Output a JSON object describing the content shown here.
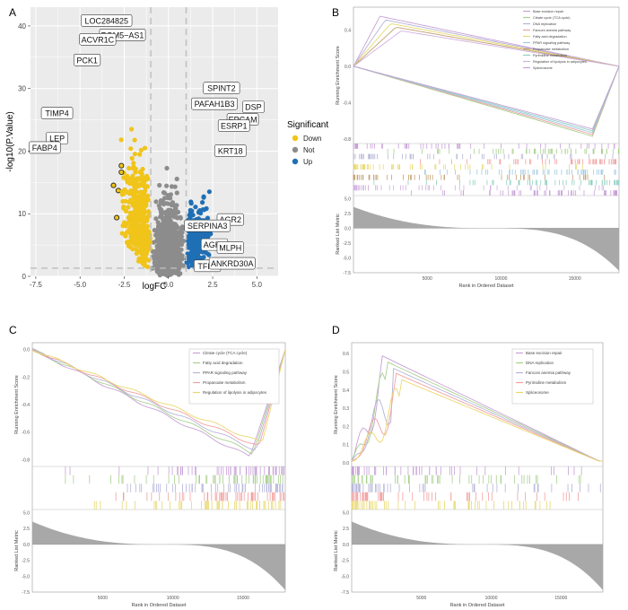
{
  "panels": {
    "A": {
      "label": "A"
    },
    "B": {
      "label": "B"
    },
    "C": {
      "label": "C"
    },
    "D": {
      "label": "D"
    }
  },
  "colors": {
    "down": "#f0c419",
    "not": "#8c8c8c",
    "up": "#1f6fb5",
    "panel_bg": "#ebebeb",
    "gsea": [
      "#c8a0d8",
      "#a8d08d",
      "#b4b4d8",
      "#f2a0a0",
      "#e8d870",
      "#9ec9e2",
      "#c2a070",
      "#8fd0c0",
      "#d0b0e0"
    ]
  },
  "chart_data": [
    {
      "panel": "A",
      "type": "scatter",
      "title": "",
      "xlabel": "logFC",
      "ylabel": "-log10(P.Value)",
      "xlim": [
        -7.8,
        6.2
      ],
      "ylim": [
        0,
        43
      ],
      "xticks": [
        -7.5,
        -5.0,
        -2.5,
        0.0,
        2.5,
        5.0
      ],
      "xtick_labels": [
        "-7.5",
        "-5.0",
        "-2.5",
        "0.0",
        "2.5",
        "5.0"
      ],
      "yticks": [
        0,
        10,
        20,
        30,
        40
      ],
      "ytick_labels": [
        "0",
        "10",
        "20",
        "30",
        "40"
      ],
      "logfc_threshold": 1,
      "p_threshold": 1.3,
      "legend": {
        "title": "Significant",
        "entries": [
          "Down",
          "Not",
          "Up"
        ],
        "position": "right"
      },
      "labels": [
        {
          "text": "LOC284825",
          "x": -3.5,
          "y": 40.8
        },
        {
          "text": "PGM5−AS1",
          "x": -2.6,
          "y": 38.5
        },
        {
          "text": "ACVR1C",
          "x": -4.0,
          "y": 37.8
        },
        {
          "text": "PCK1",
          "x": -4.6,
          "y": 34.5
        },
        {
          "text": "TIMP4",
          "x": -6.3,
          "y": 26.0
        },
        {
          "text": "LEP",
          "x": -6.3,
          "y": 22.0
        },
        {
          "text": "FABP4",
          "x": -7.0,
          "y": 20.5
        },
        {
          "text": "SPINT2",
          "x": 3.0,
          "y": 30.0
        },
        {
          "text": "PAFAH1B3",
          "x": 2.6,
          "y": 27.5
        },
        {
          "text": "DSP",
          "x": 4.8,
          "y": 27.0
        },
        {
          "text": "EPCAM",
          "x": 4.2,
          "y": 25.0
        },
        {
          "text": "ESRP1",
          "x": 3.7,
          "y": 24.0
        },
        {
          "text": "KRT18",
          "x": 3.5,
          "y": 20.0
        },
        {
          "text": "AGR2",
          "x": 3.5,
          "y": 9.0
        },
        {
          "text": "SERPINA3",
          "x": 2.2,
          "y": 8.0
        },
        {
          "text": "AGR3",
          "x": 2.6,
          "y": 5.0
        },
        {
          "text": "MLPH",
          "x": 3.5,
          "y": 4.5
        },
        {
          "text": "TFF1",
          "x": 2.2,
          "y": 1.6
        },
        {
          "text": "ANKRD30A",
          "x": 3.6,
          "y": 2.0
        }
      ]
    },
    {
      "panel": "B",
      "type": "line",
      "ylabel_top": "Running Enrichment Score",
      "ylabel_bottom": "Ranked List Metric",
      "xlabel": "Rank in Ordered Dataset",
      "xlim": [
        0,
        18000
      ],
      "xticks": [
        5000,
        10000,
        15000
      ],
      "xtick_labels": [
        "5000",
        "10000",
        "15000"
      ],
      "ylim_top": [
        -0.85,
        0.65
      ],
      "yticks_top": [
        -0.8,
        -0.4,
        0.0,
        0.4
      ],
      "ytick_labels_top": [
        "-0.8",
        "-0.4",
        "0.0",
        "0.4"
      ],
      "ylim_bottom": [
        -7.5,
        5.5
      ],
      "yticks_bottom": [
        5.0,
        2.5,
        0.0,
        -2.5,
        -5.0,
        -7.5
      ],
      "ytick_labels_bottom": [
        "5.0",
        "2.5",
        "0.0",
        "-2.5",
        "-5.0",
        "-7.5"
      ],
      "series": [
        {
          "name": "Base excision repair"
        },
        {
          "name": "Citrate cycle (TCA cycle)"
        },
        {
          "name": "DNA replication"
        },
        {
          "name": "Fanconi anemia pathway"
        },
        {
          "name": "Fatty acid degradation"
        },
        {
          "name": "PPAR signaling pathway"
        },
        {
          "name": "Propanoate metabolism"
        },
        {
          "name": "Pyrimidine metabolism"
        },
        {
          "name": "Regulation of lipolysis in adipocytes"
        },
        {
          "name": "Spliceosome"
        }
      ]
    },
    {
      "panel": "C",
      "type": "line",
      "ylabel_top": "Running Enrichment Score",
      "ylabel_bottom": "Ranked List Metric",
      "xlabel": "Rank in Ordered Dataset",
      "xlim": [
        0,
        18000
      ],
      "xticks": [
        5000,
        10000,
        15000
      ],
      "xtick_labels": [
        "5000",
        "10000",
        "15000"
      ],
      "ylim_top": [
        -0.85,
        0.05
      ],
      "yticks_top": [
        0.0,
        -0.2,
        -0.4,
        -0.6,
        -0.8
      ],
      "ytick_labels_top": [
        "0.0",
        "-0.2",
        "-0.4",
        "-0.6",
        "-0.8"
      ],
      "ylim_bottom": [
        -7.5,
        5.5
      ],
      "yticks_bottom": [
        5.0,
        2.5,
        0.0,
        -2.5,
        -5.0,
        -7.5
      ],
      "ytick_labels_bottom": [
        "5.0",
        "2.5",
        "0.0",
        "-2.5",
        "-5.0",
        "-7.5"
      ],
      "series": [
        {
          "name": "Citrate cycle (TCA cycle)"
        },
        {
          "name": "Fatty acid degradation"
        },
        {
          "name": "PPAR signaling pathway"
        },
        {
          "name": "Propanoate metabolism"
        },
        {
          "name": "Regulation of lipolysis in adipocytes"
        }
      ]
    },
    {
      "panel": "D",
      "type": "line",
      "ylabel_top": "Running Enrichment Score",
      "ylabel_bottom": "Ranked List Metric",
      "xlabel": "Rank in Ordered Dataset",
      "xlim": [
        0,
        18000
      ],
      "xticks": [
        5000,
        10000,
        15000
      ],
      "xtick_labels": [
        "5000",
        "10000",
        "15000"
      ],
      "ylim_top": [
        -0.02,
        0.66
      ],
      "yticks_top": [
        0.0,
        0.1,
        0.2,
        0.3,
        0.4,
        0.5,
        0.6
      ],
      "ytick_labels_top": [
        "0.0",
        "0.1",
        "0.2",
        "0.3",
        "0.4",
        "0.5",
        "0.6"
      ],
      "ylim_bottom": [
        -7.5,
        5.5
      ],
      "yticks_bottom": [
        5.0,
        2.5,
        0.0,
        -2.5,
        -5.0,
        -7.5
      ],
      "ytick_labels_bottom": [
        "5.0",
        "2.5",
        "0.0",
        "-2.5",
        "-5.0",
        "-7.5"
      ],
      "series": [
        {
          "name": "Base excision repair"
        },
        {
          "name": "DNA replication"
        },
        {
          "name": "Fanconi anemia pathway"
        },
        {
          "name": "Pyrimidine metabolism"
        },
        {
          "name": "Spliceosome"
        }
      ]
    }
  ]
}
